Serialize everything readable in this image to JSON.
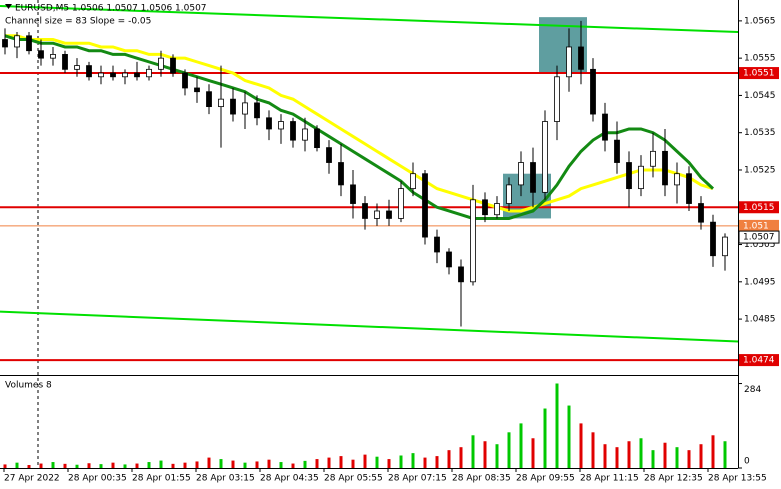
{
  "chart_data": {
    "type": "candlestick",
    "header": "EURUSD,M5  1.0506 1.0507 1.0506 1.0507",
    "subheader": "Channel size = 83 Slope = -0.05",
    "ylim": [
      1.047,
      1.05706
    ],
    "yticks": [
      1.0565,
      1.0555,
      1.0545,
      1.0535,
      1.0525,
      1.0505,
      1.0495,
      1.0485
    ],
    "x_labels": [
      "27 Apr 2022",
      "28 Apr 00:35",
      "28 Apr 01:55",
      "28 Apr 03:15",
      "28 Apr 04:35",
      "28 Apr 05:55",
      "28 Apr 07:15",
      "28 Apr 08:35",
      "28 Apr 09:55",
      "28 Apr 11:15",
      "28 Apr 12:35",
      "28 Apr 13:55"
    ],
    "up_color": "#ffffff",
    "down_color": "#000000",
    "candles": [
      [
        1.056,
        1.0563,
        1.0556,
        1.0558
      ],
      [
        1.0558,
        1.0562,
        1.0555,
        1.0561
      ],
      [
        1.0561,
        1.0562,
        1.0556,
        1.0557
      ],
      [
        1.0557,
        1.056,
        1.0553,
        1.0555
      ],
      [
        1.0555,
        1.0558,
        1.0553,
        1.0556
      ],
      [
        1.0556,
        1.0557,
        1.0551,
        1.0552
      ],
      [
        1.0552,
        1.0555,
        1.055,
        1.0553
      ],
      [
        1.0553,
        1.0554,
        1.0549,
        1.055
      ],
      [
        1.055,
        1.0553,
        1.0548,
        1.0551
      ],
      [
        1.0551,
        1.0553,
        1.0549,
        1.055
      ],
      [
        1.055,
        1.0552,
        1.0548,
        1.0551
      ],
      [
        1.0551,
        1.0554,
        1.0549,
        1.055
      ],
      [
        1.055,
        1.0553,
        1.0549,
        1.0552
      ],
      [
        1.0552,
        1.0557,
        1.055,
        1.0555
      ],
      [
        1.0555,
        1.0556,
        1.055,
        1.0551
      ],
      [
        1.0551,
        1.0552,
        1.0545,
        1.0547
      ],
      [
        1.0547,
        1.055,
        1.0543,
        1.0546
      ],
      [
        1.0546,
        1.0548,
        1.054,
        1.0542
      ],
      [
        1.0542,
        1.0553,
        1.0531,
        1.0544
      ],
      [
        1.0544,
        1.0547,
        1.0538,
        1.054
      ],
      [
        1.054,
        1.0546,
        1.0536,
        1.0543
      ],
      [
        1.0543,
        1.0545,
        1.0537,
        1.0539
      ],
      [
        1.0539,
        1.0541,
        1.0533,
        1.0536
      ],
      [
        1.0536,
        1.054,
        1.0532,
        1.0538
      ],
      [
        1.0538,
        1.0539,
        1.0531,
        1.0533
      ],
      [
        1.0533,
        1.0539,
        1.053,
        1.0536
      ],
      [
        1.0536,
        1.0537,
        1.053,
        1.0531
      ],
      [
        1.0531,
        1.0533,
        1.0524,
        1.0527
      ],
      [
        1.0527,
        1.0532,
        1.0518,
        1.0521
      ],
      [
        1.0521,
        1.0525,
        1.0512,
        1.0516
      ],
      [
        1.0516,
        1.0518,
        1.0509,
        1.0512
      ],
      [
        1.0512,
        1.0516,
        1.051,
        1.0514
      ],
      [
        1.0514,
        1.0517,
        1.051,
        1.0512
      ],
      [
        1.0512,
        1.0522,
        1.0511,
        1.052
      ],
      [
        1.052,
        1.0527,
        1.0518,
        1.0524
      ],
      [
        1.0524,
        1.0525,
        1.0505,
        1.0507
      ],
      [
        1.0507,
        1.0509,
        1.05,
        1.0503
      ],
      [
        1.0503,
        1.0504,
        1.0497,
        1.0499
      ],
      [
        1.0499,
        1.0501,
        1.0483,
        1.0495
      ],
      [
        1.0495,
        1.0521,
        1.0494,
        1.0517
      ],
      [
        1.0517,
        1.0519,
        1.0511,
        1.0513
      ],
      [
        1.0513,
        1.0518,
        1.0512,
        1.0516
      ],
      [
        1.0516,
        1.0523,
        1.0514,
        1.0521
      ],
      [
        1.0521,
        1.053,
        1.0518,
        1.0527
      ],
      [
        1.0527,
        1.0531,
        1.0515,
        1.0519
      ],
      [
        1.0519,
        1.0541,
        1.0517,
        1.0538
      ],
      [
        1.0538,
        1.0553,
        1.0533,
        1.055
      ],
      [
        1.055,
        1.0563,
        1.0546,
        1.0558
      ],
      [
        1.0558,
        1.0565,
        1.0548,
        1.0552
      ],
      [
        1.0552,
        1.0555,
        1.0538,
        1.054
      ],
      [
        1.054,
        1.0543,
        1.053,
        1.0533
      ],
      [
        1.0533,
        1.0538,
        1.0524,
        1.0527
      ],
      [
        1.0527,
        1.053,
        1.0515,
        1.052
      ],
      [
        1.052,
        1.0529,
        1.0518,
        1.0526
      ],
      [
        1.0526,
        1.0535,
        1.0523,
        1.053
      ],
      [
        1.053,
        1.0536,
        1.0518,
        1.0521
      ],
      [
        1.0521,
        1.0527,
        1.0516,
        1.0524
      ],
      [
        1.0524,
        1.0526,
        1.0514,
        1.0516
      ],
      [
        1.0516,
        1.0518,
        1.0509,
        1.0511
      ],
      [
        1.0511,
        1.0513,
        1.0499,
        1.0502
      ],
      [
        1.0502,
        1.0508,
        1.0498,
        1.0507
      ]
    ],
    "series": [
      {
        "color": "#ffff00",
        "values": [
          1.0561,
          1.0561,
          1.056,
          1.056,
          1.056,
          1.0559,
          1.0559,
          1.0559,
          1.0558,
          1.0558,
          1.0557,
          1.0557,
          1.0556,
          1.0556,
          1.0555,
          1.0555,
          1.0554,
          1.0553,
          1.0552,
          1.0551,
          1.0549,
          1.0548,
          1.0547,
          1.0545,
          1.0544,
          1.0542,
          1.054,
          1.0538,
          1.0536,
          1.0534,
          1.0532,
          1.053,
          1.0528,
          1.0526,
          1.0524,
          1.0522,
          1.052,
          1.0519,
          1.0518,
          1.0517,
          1.0516,
          1.0515,
          1.0514,
          1.0514,
          1.0515,
          1.0516,
          1.0517,
          1.0518,
          1.052,
          1.0521,
          1.0522,
          1.0523,
          1.0524,
          1.0525,
          1.0525,
          1.0525,
          1.0524,
          1.0523,
          1.0521,
          1.052,
          null
        ]
      },
      {
        "color": "#138a13",
        "values": [
          1.0561,
          1.056,
          1.056,
          1.0559,
          1.0559,
          1.0558,
          1.0558,
          1.0557,
          1.0557,
          1.0556,
          1.0556,
          1.0555,
          1.0554,
          1.0553,
          1.0552,
          1.0551,
          1.055,
          1.0549,
          1.0548,
          1.0547,
          1.0546,
          1.0544,
          1.0543,
          1.0541,
          1.054,
          1.0538,
          1.0536,
          1.0534,
          1.0532,
          1.053,
          1.0528,
          1.0526,
          1.0524,
          1.0522,
          1.0519,
          1.0517,
          1.0515,
          1.0514,
          1.0513,
          1.0512,
          1.0512,
          1.0512,
          1.0512,
          1.0513,
          1.0514,
          1.0517,
          1.0521,
          1.0526,
          1.053,
          1.0533,
          1.0535,
          1.0535,
          1.0536,
          1.0536,
          1.0535,
          1.0533,
          1.053,
          1.0527,
          1.0523,
          1.052,
          null
        ]
      }
    ],
    "channel": {
      "color": "#00e000",
      "upper": [
        1.0569,
        1.0562
      ],
      "lower": [
        1.0487,
        1.0479
      ]
    },
    "levels": [
      {
        "value": 1.0551,
        "color": "#e00000"
      },
      {
        "value": 1.0515,
        "color": "#e00000"
      },
      {
        "value": 1.0474,
        "color": "#e00000"
      },
      {
        "value": 1.051,
        "color": "#f08040"
      }
    ],
    "current_price": 1.0507,
    "zones": [
      {
        "from": 45,
        "to": 48,
        "high": 1.0566,
        "low": 1.0551,
        "color": "#5f9ea0"
      },
      {
        "from": 42,
        "to": 45,
        "high": 1.0524,
        "low": 1.0512,
        "color": "#5f9ea0"
      }
    ],
    "volume": {
      "label": "Volumes 8",
      "ylim": [
        0,
        306
      ],
      "yticks": [
        0,
        284
      ],
      "up_color": "#00c800",
      "down_color": "#e00000",
      "values": [
        12,
        18,
        10,
        15,
        20,
        14,
        11,
        16,
        13,
        18,
        12,
        15,
        20,
        25,
        14,
        18,
        22,
        35,
        30,
        25,
        18,
        22,
        28,
        20,
        15,
        24,
        30,
        35,
        40,
        28,
        45,
        38,
        30,
        42,
        50,
        35,
        40,
        60,
        70,
        110,
        90,
        80,
        120,
        150,
        100,
        200,
        284,
        210,
        150,
        120,
        80,
        70,
        90,
        100,
        60,
        85,
        70,
        60,
        80,
        110,
        90
      ]
    }
  }
}
